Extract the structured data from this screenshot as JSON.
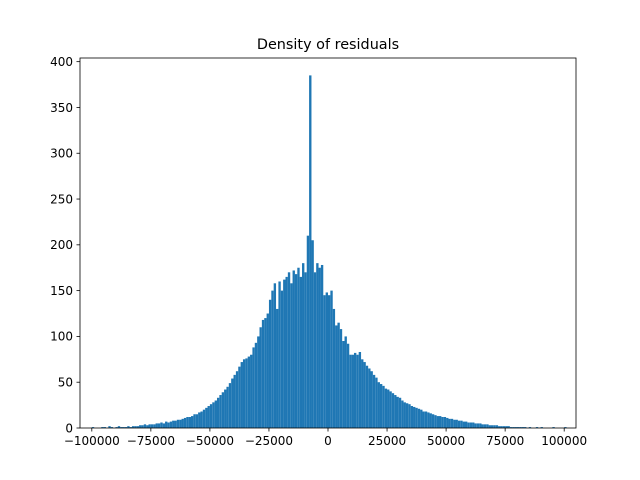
{
  "chart_data": {
    "type": "bar",
    "title": "Density of residuals",
    "xlabel": "",
    "ylabel": "",
    "xlim": [
      -105000,
      105000
    ],
    "ylim": [
      0,
      404
    ],
    "xticks": [
      -100000,
      -75000,
      -50000,
      -25000,
      0,
      25000,
      50000,
      75000,
      100000
    ],
    "xtick_labels": [
      "−100000",
      "−75000",
      "−50000",
      "−25000",
      "0",
      "25000",
      "50000",
      "75000",
      "100000"
    ],
    "yticks": [
      0,
      50,
      100,
      150,
      200,
      250,
      300,
      350,
      400
    ],
    "ytick_labels": [
      "0",
      "50",
      "100",
      "150",
      "200",
      "250",
      "300",
      "350",
      "400"
    ],
    "grid": false,
    "bar_color": "#1f77b4",
    "bin_start": -100000,
    "bin_width": 1000,
    "values": [
      1,
      0,
      0,
      0,
      1,
      1,
      0,
      2,
      1,
      0,
      1,
      2,
      1,
      1,
      1,
      2,
      1,
      2,
      2,
      2,
      3,
      3,
      4,
      3,
      4,
      4,
      4,
      5,
      5,
      6,
      5,
      7,
      6,
      7,
      8,
      8,
      9,
      9,
      10,
      11,
      12,
      12,
      13,
      15,
      15,
      17,
      18,
      20,
      22,
      24,
      26,
      28,
      30,
      33,
      36,
      39,
      42,
      45,
      49,
      54,
      58,
      62,
      67,
      72,
      75,
      76,
      78,
      80,
      88,
      93,
      100,
      110,
      118,
      120,
      125,
      140,
      150,
      158,
      130,
      160,
      150,
      162,
      165,
      170,
      158,
      172,
      168,
      175,
      165,
      180,
      170,
      210,
      385,
      205,
      170,
      180,
      175,
      178,
      145,
      148,
      145,
      150,
      130,
      112,
      115,
      108,
      95,
      100,
      92,
      80,
      80,
      82,
      80,
      83,
      75,
      72,
      68,
      65,
      62,
      58,
      55,
      50,
      48,
      46,
      43,
      42,
      40,
      38,
      36,
      34,
      33,
      30,
      28,
      27,
      26,
      24,
      23,
      22,
      21,
      20,
      18,
      18,
      17,
      16,
      15,
      14,
      13,
      13,
      12,
      12,
      11,
      10,
      10,
      9,
      9,
      8,
      8,
      7,
      7,
      6,
      6,
      6,
      5,
      5,
      5,
      4,
      4,
      4,
      3,
      3,
      3,
      3,
      2,
      2,
      2,
      2,
      2,
      1,
      1,
      1,
      1,
      1,
      1,
      1,
      0,
      1,
      0,
      0,
      1,
      0,
      1,
      0,
      0,
      0,
      0,
      1,
      0,
      0,
      0,
      0,
      1
    ]
  }
}
